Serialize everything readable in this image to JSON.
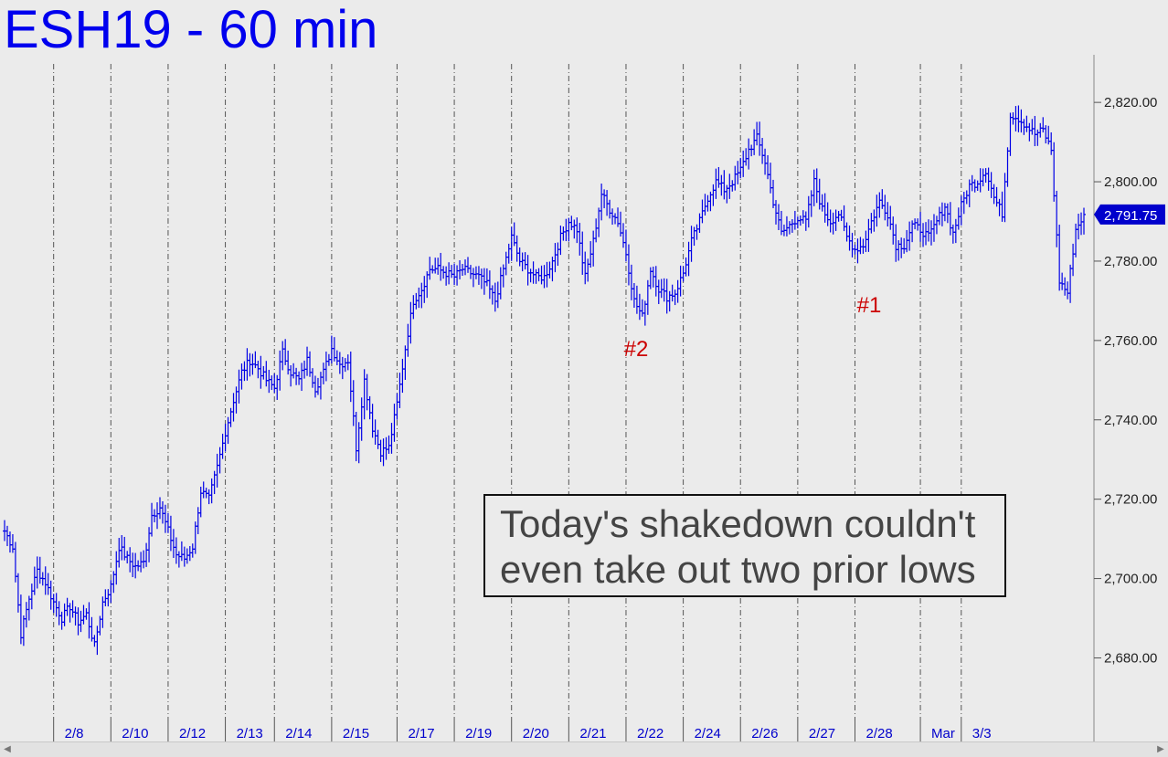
{
  "chart_data": {
    "type": "bar",
    "title": "ESH19 - 60 min",
    "subtitle": "",
    "xlabel": "",
    "ylabel": "",
    "ylim": [
      2664,
      2832
    ],
    "y_ticks": [
      {
        "value": 2680,
        "label": "2,680.00"
      },
      {
        "value": 2700,
        "label": "2,700.00"
      },
      {
        "value": 2720,
        "label": "2,720.00"
      },
      {
        "value": 2740,
        "label": "2,740.00"
      },
      {
        "value": 2760,
        "label": "2,760.00"
      },
      {
        "value": 2780,
        "label": "2,780.00"
      },
      {
        "value": 2800,
        "label": "2,800.00"
      },
      {
        "value": 2820,
        "label": "2,820.00"
      }
    ],
    "x_labels": [
      "2/8",
      "2/10",
      "2/12",
      "2/13",
      "2/14",
      "2/15",
      "2/17",
      "2/19",
      "2/20",
      "2/21",
      "2/22",
      "2/24",
      "2/26",
      "2/27",
      "2/28",
      "Mar",
      "3/3"
    ],
    "last_price": {
      "value": 2791.75,
      "label": "2,791.75"
    },
    "markers": [
      {
        "label": "#2",
        "value": 2763
      },
      {
        "label": "#1",
        "value": 2774
      }
    ],
    "annotation": [
      "Today's shakedown couldn't",
      "even take out two prior lows"
    ],
    "series_color": "#0000e6",
    "marker_color": "#cc0000",
    "price_path": [
      2712,
      2708,
      2686,
      2695,
      2702,
      2699,
      2694,
      2690,
      2693,
      2689,
      2691,
      2683,
      2694,
      2698,
      2708,
      2705,
      2703,
      2704,
      2716,
      2718,
      2712,
      2706,
      2705,
      2708,
      2722,
      2720,
      2728,
      2737,
      2745,
      2752,
      2755,
      2753,
      2750,
      2748,
      2757,
      2752,
      2750,
      2755,
      2748,
      2752,
      2758,
      2754,
      2755,
      2733,
      2750,
      2738,
      2732,
      2733,
      2744,
      2758,
      2770,
      2773,
      2778,
      2778,
      2777,
      2776,
      2778,
      2777,
      2776,
      2774,
      2770,
      2778,
      2786,
      2780,
      2778,
      2776,
      2776,
      2780,
      2786,
      2790,
      2788,
      2776,
      2785,
      2797,
      2793,
      2790,
      2782,
      2770,
      2766,
      2778,
      2773,
      2771,
      2772,
      2777,
      2785,
      2790,
      2796,
      2800,
      2798,
      2800,
      2803,
      2808,
      2811,
      2805,
      2795,
      2787,
      2789,
      2791,
      2790,
      2800,
      2793,
      2790,
      2792,
      2786,
      2783,
      2784,
      2790,
      2795,
      2792,
      2784,
      2784,
      2789,
      2788,
      2786,
      2790,
      2794,
      2787,
      2794,
      2799,
      2800,
      2803,
      2796,
      2792,
      2817,
      2816,
      2814,
      2812,
      2813,
      2808,
      2775,
      2772,
      2788,
      2791.75
    ],
    "day_boundary_bars": [
      6,
      13,
      20,
      27,
      33,
      40,
      48,
      55,
      62,
      69,
      76,
      83,
      90,
      97,
      104,
      112,
      117
    ]
  }
}
